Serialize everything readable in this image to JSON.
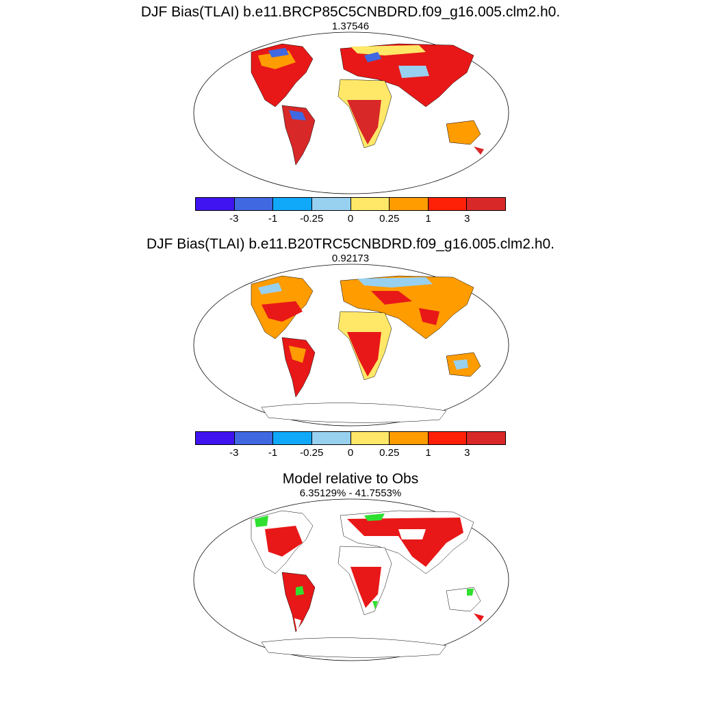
{
  "panels": [
    {
      "title": "DJF Bias(TLAI) b.e11.BRCP85C5CNBDRD.f09_g16.005.clm2.h0.",
      "subtitle": "1.37546"
    },
    {
      "title": "DJF Bias(TLAI) b.e11.B20TRC5CNBDRD.f09_g16.005.clm2.h0.",
      "subtitle": "0.92173"
    },
    {
      "title": "Model relative to Obs",
      "subtitle": "6.35129% - 41.7553%"
    }
  ],
  "colorbar": {
    "colors": [
      "#4014f0",
      "#4068e0",
      "#10a8f8",
      "#98d0f0",
      "#ffe868",
      "#ff9c00",
      "#ff2008",
      "#d82828"
    ],
    "labels": [
      "-3",
      "-1",
      "-0.25",
      "0",
      "0.25",
      "1",
      "3"
    ]
  },
  "palette": {
    "land_red": "#e81818",
    "land_green": "#30e030",
    "ocean": "#ffffff"
  }
}
